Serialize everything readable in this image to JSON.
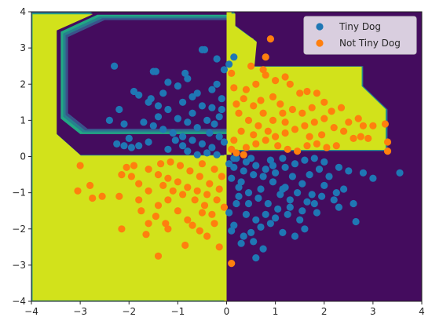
{
  "chart_data": {
    "type": "scatter",
    "title": "",
    "xlabel": "",
    "ylabel": "",
    "xlim": [
      -4,
      4
    ],
    "ylim": [
      -4,
      4
    ],
    "xticks": [
      "−4",
      "−3",
      "−2",
      "−1",
      "0",
      "1",
      "2",
      "3",
      "4"
    ],
    "yticks": [
      "−4",
      "−3",
      "−2",
      "−1",
      "0",
      "1",
      "2",
      "3",
      "4"
    ],
    "grid": false,
    "legend_position": "top-right",
    "background_regions": {
      "description_levels": [
        "low",
        "high"
      ],
      "colors": {
        "low": "#440c5e",
        "mid1": "#3a538b",
        "mid2": "#26818e",
        "mid3": "#22a884",
        "high": "#d2e21b"
      },
      "high_region_polygon": [
        [
          -4,
          4
        ],
        [
          -2.75,
          4
        ],
        [
          -3.5,
          3.55
        ],
        [
          -3.5,
          0.65
        ],
        [
          -3.0,
          0.05
        ],
        [
          0.0,
          0.05
        ],
        [
          0.0,
          4
        ],
        [
          0.1,
          4
        ],
        [
          0.1,
          3.0
        ],
        [
          0.0,
          3.0
        ],
        [
          0.0,
          3.2
        ],
        [
          0.55,
          3.2
        ],
        [
          0.55,
          3.4
        ],
        [
          0.2,
          3.9
        ],
        [
          -0.5,
          3.9
        ],
        [
          -0.5,
          3.55
        ],
        [
          0.0,
          3.55
        ],
        [
          0.0,
          3.2
        ],
        [
          -0.1,
          3.2
        ],
        [
          -0.1,
          3.3
        ],
        [
          0.55,
          3.3
        ],
        [
          0.55,
          3.25
        ],
        [
          0.3,
          3.2
        ],
        [
          0.3,
          2.7
        ],
        [
          0.35,
          2.5
        ],
        [
          0.35,
          2.2
        ],
        [
          0.25,
          2.1
        ],
        [
          0.3,
          1.95
        ],
        [
          0.3,
          1.85
        ]
      ],
      "high_region_main": [
        [
          -4,
          4
        ],
        [
          -2.75,
          4
        ],
        [
          -3.5,
          3.55
        ],
        [
          -3.5,
          0.65
        ],
        [
          -3.0,
          0.05
        ],
        [
          0.0,
          0.05
        ],
        [
          0.0,
          -4
        ],
        [
          -4,
          -4
        ]
      ],
      "high_region_upper_right": [
        [
          0.0,
          4
        ],
        [
          0.15,
          4
        ],
        [
          0.15,
          3.65
        ],
        [
          0.6,
          3.2
        ],
        [
          0.55,
          2.5
        ],
        [
          2.8,
          2.5
        ],
        [
          2.8,
          1.95
        ],
        [
          3.3,
          1.3
        ],
        [
          3.3,
          0.15
        ],
        [
          0.0,
          0.15
        ]
      ]
    },
    "series": [
      {
        "name": "Tiny Dog",
        "color": "#1f77b4",
        "points": [
          [
            -2.3,
            2.5
          ],
          [
            -1.9,
            1.8
          ],
          [
            -2.4,
            1.0
          ],
          [
            -2.1,
            0.9
          ],
          [
            -2.2,
            1.3
          ],
          [
            -1.5,
            2.35
          ],
          [
            -1.45,
            2.35
          ],
          [
            -0.5,
            2.95
          ],
          [
            -0.45,
            2.95
          ],
          [
            -0.85,
            2.3
          ],
          [
            -0.8,
            2.15
          ],
          [
            -1.2,
            2.05
          ],
          [
            -1.0,
            1.95
          ],
          [
            -1.8,
            1.7
          ],
          [
            -1.6,
            1.5
          ],
          [
            -1.4,
            1.4
          ],
          [
            -1.2,
            1.3
          ],
          [
            -0.9,
            1.5
          ],
          [
            -0.7,
            1.2
          ],
          [
            -0.6,
            1.75
          ],
          [
            -0.3,
            1.85
          ],
          [
            -0.2,
            2.0
          ],
          [
            -0.5,
            1.4
          ],
          [
            -0.4,
            1.0
          ],
          [
            -0.25,
            0.9
          ],
          [
            -0.15,
            1.1
          ],
          [
            -0.1,
            1.6
          ],
          [
            -0.05,
            2.4
          ],
          [
            -0.2,
            2.7
          ],
          [
            0.05,
            2.55
          ],
          [
            0.15,
            2.75
          ],
          [
            -0.1,
            1.3
          ],
          [
            -1.7,
            0.95
          ],
          [
            -1.5,
            0.85
          ],
          [
            -1.3,
            0.75
          ],
          [
            -1.1,
            0.65
          ],
          [
            -0.9,
            0.55
          ],
          [
            -0.7,
            0.45
          ],
          [
            -0.5,
            0.35
          ],
          [
            -0.3,
            0.25
          ],
          [
            -1.6,
            0.4
          ],
          [
            -1.8,
            0.3
          ],
          [
            -1.95,
            0.25
          ],
          [
            -2.1,
            0.3
          ],
          [
            -2.0,
            0.5
          ],
          [
            -2.25,
            0.35
          ],
          [
            -1.2,
            0.2
          ],
          [
            -0.8,
            0.15
          ],
          [
            -0.6,
            0.05
          ],
          [
            -0.4,
            0.1
          ],
          [
            -0.2,
            0.05
          ],
          [
            -1.4,
            1.1
          ],
          [
            -1.0,
            1.05
          ],
          [
            -0.8,
            0.95
          ],
          [
            -0.6,
            0.8
          ],
          [
            -0.35,
            0.65
          ],
          [
            -0.15,
            0.55
          ],
          [
            -0.05,
            0.4
          ],
          [
            -0.9,
            0.3
          ],
          [
            -1.05,
            0.45
          ],
          [
            -0.3,
            1.35
          ],
          [
            -0.7,
            1.65
          ],
          [
            -1.3,
            1.75
          ],
          [
            -1.55,
            1.6
          ],
          [
            0.2,
            -0.05
          ],
          [
            0.4,
            -0.15
          ],
          [
            0.6,
            -0.25
          ],
          [
            0.8,
            -0.35
          ],
          [
            1.0,
            -0.45
          ],
          [
            1.2,
            -0.3
          ],
          [
            1.4,
            -0.2
          ],
          [
            1.6,
            -0.1
          ],
          [
            1.8,
            -0.05
          ],
          [
            2.0,
            -0.15
          ],
          [
            2.3,
            -0.3
          ],
          [
            2.5,
            -0.4
          ],
          [
            2.8,
            -0.45
          ],
          [
            3.0,
            -0.6
          ],
          [
            3.55,
            -0.45
          ],
          [
            2.4,
            -0.9
          ],
          [
            2.2,
            -1.2
          ],
          [
            2.6,
            -1.3
          ],
          [
            2.65,
            -1.8
          ],
          [
            1.75,
            -1.05
          ],
          [
            1.8,
            -1.3
          ],
          [
            1.85,
            -1.55
          ],
          [
            1.55,
            -1.5
          ],
          [
            1.3,
            -1.2
          ],
          [
            1.15,
            -0.9
          ],
          [
            0.95,
            -0.7
          ],
          [
            0.75,
            -0.55
          ],
          [
            0.55,
            -0.5
          ],
          [
            0.35,
            -0.4
          ],
          [
            0.15,
            -0.3
          ],
          [
            0.1,
            -0.6
          ],
          [
            0.25,
            -0.85
          ],
          [
            0.45,
            -1.0
          ],
          [
            0.65,
            -1.15
          ],
          [
            0.85,
            -1.3
          ],
          [
            1.05,
            -1.45
          ],
          [
            1.25,
            -1.6
          ],
          [
            1.5,
            -1.75
          ],
          [
            1.6,
            -2.0
          ],
          [
            1.4,
            -2.2
          ],
          [
            1.15,
            -2.1
          ],
          [
            0.9,
            -1.85
          ],
          [
            0.7,
            -1.95
          ],
          [
            0.5,
            -2.1
          ],
          [
            0.35,
            -2.2
          ],
          [
            0.15,
            -1.9
          ],
          [
            0.05,
            -1.55
          ],
          [
            0.2,
            -1.3
          ],
          [
            0.4,
            -1.6
          ],
          [
            0.6,
            -1.75
          ],
          [
            0.8,
            -1.6
          ],
          [
            1.0,
            -1.7
          ],
          [
            0.55,
            -2.35
          ],
          [
            0.75,
            -2.55
          ],
          [
            0.6,
            -2.8
          ],
          [
            0.3,
            -2.4
          ],
          [
            0.1,
            -2.05
          ],
          [
            0.95,
            -0.25
          ],
          [
            1.15,
            -0.05
          ],
          [
            1.35,
            -0.55
          ],
          [
            1.55,
            -0.75
          ],
          [
            1.7,
            -0.5
          ],
          [
            1.9,
            -0.35
          ],
          [
            2.1,
            -0.55
          ],
          [
            2.0,
            -0.8
          ],
          [
            0.05,
            -0.2
          ],
          [
            0.3,
            -0.7
          ],
          [
            0.7,
            -0.9
          ],
          [
            1.1,
            -1.05
          ],
          [
            0.45,
            -1.3
          ],
          [
            0.25,
            -1.1
          ],
          [
            0.15,
            -0.05
          ],
          [
            0.5,
            -0.05
          ],
          [
            0.9,
            -0.1
          ],
          [
            1.2,
            -0.85
          ],
          [
            1.45,
            -1.0
          ],
          [
            1.65,
            -1.25
          ],
          [
            1.95,
            -1.1
          ],
          [
            2.3,
            -1.4
          ],
          [
            2.25,
            -1.0
          ],
          [
            1.3,
            -1.4
          ]
        ]
      },
      {
        "name": "Not Tiny Dog",
        "color": "#ff7f0e",
        "points": [
          [
            -3.0,
            -0.25
          ],
          [
            -2.8,
            -0.8
          ],
          [
            -3.05,
            -0.95
          ],
          [
            -2.75,
            -1.15
          ],
          [
            -2.55,
            -1.1
          ],
          [
            -2.2,
            -1.1
          ],
          [
            -2.15,
            -2.0
          ],
          [
            -2.15,
            -0.5
          ],
          [
            -1.75,
            -1.5
          ],
          [
            -1.6,
            -1.85
          ],
          [
            -1.65,
            -2.15
          ],
          [
            -1.4,
            -2.75
          ],
          [
            -1.2,
            -2.0
          ],
          [
            -0.85,
            -2.45
          ],
          [
            -0.55,
            -2.05
          ],
          [
            -0.4,
            -2.2
          ],
          [
            -0.15,
            -2.5
          ],
          [
            0.1,
            -2.95
          ],
          [
            -0.25,
            -1.85
          ],
          [
            -0.5,
            -1.55
          ],
          [
            -0.8,
            -1.75
          ],
          [
            -1.0,
            -1.5
          ],
          [
            -1.2,
            -1.2
          ],
          [
            -1.4,
            -1.35
          ],
          [
            -1.6,
            -0.95
          ],
          [
            -1.8,
            -0.75
          ],
          [
            -1.95,
            -0.55
          ],
          [
            -2.05,
            -0.3
          ],
          [
            -1.9,
            -0.25
          ],
          [
            -1.6,
            -0.35
          ],
          [
            -1.4,
            -0.5
          ],
          [
            -1.2,
            -0.6
          ],
          [
            -1.0,
            -0.7
          ],
          [
            -0.8,
            -0.85
          ],
          [
            -0.6,
            -0.95
          ],
          [
            -0.4,
            -1.05
          ],
          [
            -0.2,
            -1.2
          ],
          [
            -0.05,
            -1.4
          ],
          [
            -0.15,
            -0.9
          ],
          [
            -0.35,
            -0.75
          ],
          [
            -0.55,
            -0.55
          ],
          [
            -0.75,
            -0.4
          ],
          [
            -0.95,
            -0.25
          ],
          [
            -1.15,
            -0.15
          ],
          [
            -1.35,
            -0.2
          ],
          [
            -0.5,
            -0.2
          ],
          [
            -0.25,
            -0.35
          ],
          [
            -0.1,
            -0.55
          ],
          [
            -0.65,
            -1.2
          ],
          [
            -0.9,
            -1.05
          ],
          [
            -1.1,
            -0.95
          ],
          [
            -1.3,
            -0.8
          ],
          [
            -0.45,
            -1.35
          ],
          [
            -0.3,
            -1.6
          ],
          [
            -0.7,
            -1.9
          ],
          [
            -1.45,
            -1.65
          ],
          [
            -1.8,
            -1.2
          ],
          [
            -1.25,
            -1.85
          ],
          [
            0.2,
            0.1
          ],
          [
            0.4,
            0.25
          ],
          [
            0.6,
            0.35
          ],
          [
            0.8,
            0.45
          ],
          [
            1.0,
            0.55
          ],
          [
            1.2,
            0.65
          ],
          [
            1.4,
            0.75
          ],
          [
            1.6,
            0.85
          ],
          [
            1.8,
            0.95
          ],
          [
            2.0,
            1.05
          ],
          [
            2.2,
            0.8
          ],
          [
            2.4,
            0.7
          ],
          [
            2.6,
            0.5
          ],
          [
            2.75,
            0.55
          ],
          [
            2.9,
            0.5
          ],
          [
            3.0,
            0.85
          ],
          [
            3.25,
            0.9
          ],
          [
            3.3,
            0.4
          ],
          [
            3.3,
            0.15
          ],
          [
            2.7,
            1.05
          ],
          [
            2.35,
            1.35
          ],
          [
            2.0,
            1.5
          ],
          [
            1.85,
            1.75
          ],
          [
            1.65,
            1.8
          ],
          [
            1.5,
            1.75
          ],
          [
            1.3,
            2.0
          ],
          [
            1.0,
            2.1
          ],
          [
            0.75,
            2.4
          ],
          [
            0.5,
            2.5
          ],
          [
            0.8,
            2.25
          ],
          [
            0.1,
            2.3
          ],
          [
            0.15,
            1.9
          ],
          [
            0.35,
            1.6
          ],
          [
            0.55,
            1.4
          ],
          [
            0.75,
            1.2
          ],
          [
            0.95,
            1.0
          ],
          [
            1.15,
            1.2
          ],
          [
            1.35,
            1.3
          ],
          [
            1.55,
            1.2
          ],
          [
            0.25,
            1.2
          ],
          [
            0.45,
            1.0
          ],
          [
            0.65,
            0.85
          ],
          [
            0.85,
            0.7
          ],
          [
            1.05,
            0.3
          ],
          [
            1.25,
            0.2
          ],
          [
            1.45,
            0.15
          ],
          [
            1.65,
            0.3
          ],
          [
            1.85,
            0.35
          ],
          [
            2.05,
            0.25
          ],
          [
            2.25,
            0.3
          ],
          [
            0.9,
            3.25
          ],
          [
            0.8,
            2.75
          ],
          [
            1.2,
            2.2
          ],
          [
            0.3,
            0.7
          ],
          [
            0.15,
            0.45
          ],
          [
            0.55,
            0.6
          ],
          [
            0.7,
            1.55
          ],
          [
            0.95,
            1.65
          ],
          [
            1.1,
            1.45
          ],
          [
            0.4,
            1.85
          ],
          [
            0.2,
            1.45
          ],
          [
            0.6,
            2.0
          ],
          [
            1.75,
            1.35
          ],
          [
            2.15,
            1.25
          ],
          [
            1.95,
            0.6
          ],
          [
            1.7,
            0.55
          ],
          [
            0.35,
            0.05
          ],
          [
            0.1,
            0.2
          ],
          [
            1.2,
            0.95
          ],
          [
            2.5,
            0.95
          ],
          [
            2.8,
            0.85
          ]
        ]
      }
    ]
  }
}
